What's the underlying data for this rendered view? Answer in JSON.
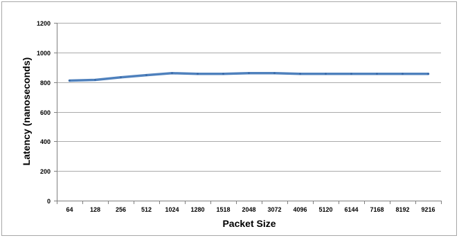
{
  "chart_data": {
    "type": "line",
    "title": "",
    "xlabel": "Packet Size",
    "ylabel": "Latency (nanoseconds)",
    "categories": [
      "64",
      "128",
      "256",
      "512",
      "1024",
      "1280",
      "1518",
      "2048",
      "3072",
      "4096",
      "5120",
      "6144",
      "7168",
      "8192",
      "9216"
    ],
    "series": [
      {
        "values": [
          810,
          815,
          832,
          847,
          860,
          856,
          856,
          860,
          860,
          856,
          856,
          856,
          856,
          856,
          856
        ]
      }
    ],
    "ylim": [
      0,
      1200
    ],
    "yticks": [
      0,
      200,
      400,
      600,
      800,
      1000,
      1200
    ],
    "grid": "horizontal",
    "legend": "none",
    "colors": {
      "line": "#4f81bd",
      "grid": "#8c8c8c",
      "axis": "#7f7f7f"
    }
  }
}
